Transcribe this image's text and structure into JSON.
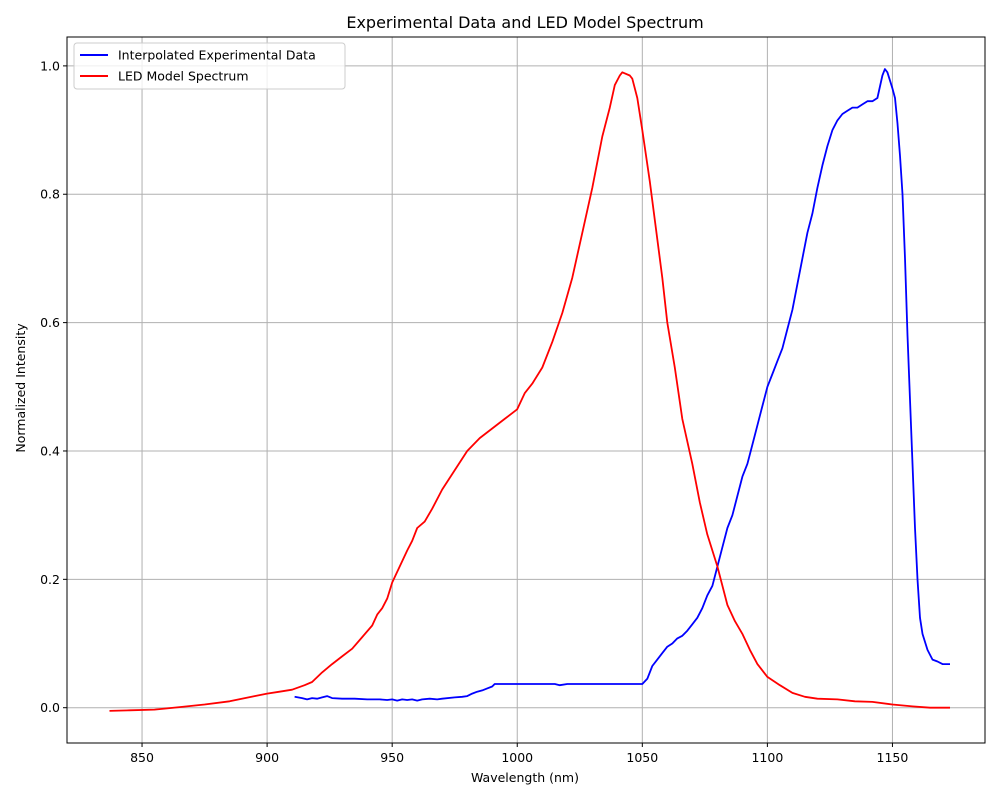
{
  "chart_data": {
    "type": "line",
    "title": "Experimental Data and LED Model Spectrum",
    "xlabel": "Wavelength (nm)",
    "ylabel": "Normalized Intensity",
    "xlim": [
      820,
      1187
    ],
    "ylim": [
      -0.055,
      1.045
    ],
    "xticks": [
      850,
      900,
      950,
      1000,
      1050,
      1100,
      1150
    ],
    "yticks": [
      0.0,
      0.2,
      0.4,
      0.6,
      0.8,
      1.0
    ],
    "xtick_labels": [
      "850",
      "900",
      "950",
      "1000",
      "1050",
      "1100",
      "1150"
    ],
    "ytick_labels": [
      "0.0",
      "0.2",
      "0.4",
      "0.6",
      "0.8",
      "1.0"
    ],
    "grid": true,
    "legend_position": "top-left",
    "series": [
      {
        "name": "Interpolated Experimental Data",
        "color": "#0000ff",
        "points": [
          [
            911,
            0.017
          ],
          [
            914,
            0.015
          ],
          [
            916,
            0.013
          ],
          [
            918,
            0.015
          ],
          [
            920,
            0.014
          ],
          [
            922,
            0.016
          ],
          [
            924,
            0.018
          ],
          [
            926,
            0.015
          ],
          [
            930,
            0.014
          ],
          [
            935,
            0.014
          ],
          [
            940,
            0.013
          ],
          [
            945,
            0.013
          ],
          [
            948,
            0.012
          ],
          [
            950,
            0.013
          ],
          [
            952,
            0.011
          ],
          [
            954,
            0.013
          ],
          [
            956,
            0.012
          ],
          [
            958,
            0.013
          ],
          [
            960,
            0.011
          ],
          [
            962,
            0.013
          ],
          [
            965,
            0.014
          ],
          [
            968,
            0.013
          ],
          [
            970,
            0.014
          ],
          [
            975,
            0.016
          ],
          [
            978,
            0.017
          ],
          [
            980,
            0.018
          ],
          [
            982,
            0.022
          ],
          [
            984,
            0.025
          ],
          [
            986,
            0.027
          ],
          [
            988,
            0.03
          ],
          [
            990,
            0.033
          ],
          [
            991,
            0.037
          ],
          [
            1000,
            0.037
          ],
          [
            1010,
            0.037
          ],
          [
            1015,
            0.037
          ],
          [
            1017,
            0.035
          ],
          [
            1020,
            0.037
          ],
          [
            1030,
            0.037
          ],
          [
            1040,
            0.037
          ],
          [
            1050,
            0.037
          ],
          [
            1052,
            0.045
          ],
          [
            1054,
            0.065
          ],
          [
            1056,
            0.075
          ],
          [
            1058,
            0.085
          ],
          [
            1060,
            0.095
          ],
          [
            1062,
            0.1
          ],
          [
            1064,
            0.108
          ],
          [
            1066,
            0.112
          ],
          [
            1068,
            0.12
          ],
          [
            1070,
            0.13
          ],
          [
            1072,
            0.14
          ],
          [
            1074,
            0.155
          ],
          [
            1076,
            0.175
          ],
          [
            1078,
            0.19
          ],
          [
            1080,
            0.22
          ],
          [
            1082,
            0.25
          ],
          [
            1084,
            0.28
          ],
          [
            1086,
            0.3
          ],
          [
            1088,
            0.33
          ],
          [
            1090,
            0.36
          ],
          [
            1092,
            0.38
          ],
          [
            1094,
            0.41
          ],
          [
            1096,
            0.44
          ],
          [
            1098,
            0.47
          ],
          [
            1100,
            0.5
          ],
          [
            1102,
            0.52
          ],
          [
            1104,
            0.54
          ],
          [
            1106,
            0.56
          ],
          [
            1108,
            0.59
          ],
          [
            1110,
            0.62
          ],
          [
            1112,
            0.66
          ],
          [
            1114,
            0.7
          ],
          [
            1116,
            0.74
          ],
          [
            1118,
            0.77
          ],
          [
            1120,
            0.81
          ],
          [
            1122,
            0.845
          ],
          [
            1124,
            0.875
          ],
          [
            1126,
            0.9
          ],
          [
            1128,
            0.915
          ],
          [
            1130,
            0.925
          ],
          [
            1132,
            0.93
          ],
          [
            1134,
            0.935
          ],
          [
            1136,
            0.935
          ],
          [
            1138,
            0.94
          ],
          [
            1140,
            0.945
          ],
          [
            1142,
            0.945
          ],
          [
            1144,
            0.95
          ],
          [
            1146,
            0.985
          ],
          [
            1147,
            0.995
          ],
          [
            1148,
            0.99
          ],
          [
            1150,
            0.965
          ],
          [
            1151,
            0.95
          ],
          [
            1152,
            0.91
          ],
          [
            1153,
            0.86
          ],
          [
            1154,
            0.8
          ],
          [
            1155,
            0.7
          ],
          [
            1156,
            0.58
          ],
          [
            1157,
            0.48
          ],
          [
            1158,
            0.38
          ],
          [
            1159,
            0.28
          ],
          [
            1160,
            0.2
          ],
          [
            1161,
            0.14
          ],
          [
            1162,
            0.115
          ],
          [
            1164,
            0.09
          ],
          [
            1166,
            0.075
          ],
          [
            1168,
            0.072
          ],
          [
            1170,
            0.068
          ],
          [
            1173,
            0.068
          ]
        ]
      },
      {
        "name": "LED Model Spectrum",
        "color": "#ff0000",
        "points": [
          [
            837,
            -0.005
          ],
          [
            845,
            -0.004
          ],
          [
            855,
            -0.003
          ],
          [
            865,
            0.001
          ],
          [
            875,
            0.005
          ],
          [
            885,
            0.01
          ],
          [
            895,
            0.018
          ],
          [
            900,
            0.022
          ],
          [
            905,
            0.025
          ],
          [
            910,
            0.028
          ],
          [
            915,
            0.035
          ],
          [
            918,
            0.04
          ],
          [
            922,
            0.055
          ],
          [
            926,
            0.068
          ],
          [
            930,
            0.08
          ],
          [
            934,
            0.092
          ],
          [
            938,
            0.11
          ],
          [
            942,
            0.128
          ],
          [
            944,
            0.145
          ],
          [
            946,
            0.155
          ],
          [
            948,
            0.17
          ],
          [
            950,
            0.195
          ],
          [
            953,
            0.22
          ],
          [
            956,
            0.245
          ],
          [
            958,
            0.26
          ],
          [
            960,
            0.28
          ],
          [
            963,
            0.29
          ],
          [
            966,
            0.31
          ],
          [
            970,
            0.34
          ],
          [
            975,
            0.37
          ],
          [
            980,
            0.4
          ],
          [
            985,
            0.42
          ],
          [
            990,
            0.435
          ],
          [
            995,
            0.45
          ],
          [
            1000,
            0.465
          ],
          [
            1003,
            0.49
          ],
          [
            1006,
            0.505
          ],
          [
            1010,
            0.53
          ],
          [
            1014,
            0.57
          ],
          [
            1018,
            0.615
          ],
          [
            1022,
            0.67
          ],
          [
            1026,
            0.74
          ],
          [
            1030,
            0.81
          ],
          [
            1034,
            0.89
          ],
          [
            1037,
            0.935
          ],
          [
            1039,
            0.97
          ],
          [
            1041,
            0.985
          ],
          [
            1042,
            0.99
          ],
          [
            1045,
            0.985
          ],
          [
            1046,
            0.98
          ],
          [
            1048,
            0.95
          ],
          [
            1050,
            0.9
          ],
          [
            1053,
            0.82
          ],
          [
            1055,
            0.76
          ],
          [
            1058,
            0.67
          ],
          [
            1060,
            0.6
          ],
          [
            1063,
            0.53
          ],
          [
            1066,
            0.45
          ],
          [
            1070,
            0.38
          ],
          [
            1073,
            0.32
          ],
          [
            1076,
            0.27
          ],
          [
            1080,
            0.22
          ],
          [
            1084,
            0.16
          ],
          [
            1087,
            0.135
          ],
          [
            1090,
            0.115
          ],
          [
            1093,
            0.09
          ],
          [
            1096,
            0.068
          ],
          [
            1100,
            0.048
          ],
          [
            1105,
            0.035
          ],
          [
            1110,
            0.023
          ],
          [
            1115,
            0.017
          ],
          [
            1120,
            0.014
          ],
          [
            1128,
            0.013
          ],
          [
            1135,
            0.01
          ],
          [
            1142,
            0.009
          ],
          [
            1150,
            0.005
          ],
          [
            1158,
            0.002
          ],
          [
            1165,
            0.0
          ],
          [
            1173,
            0.0
          ]
        ]
      }
    ]
  }
}
